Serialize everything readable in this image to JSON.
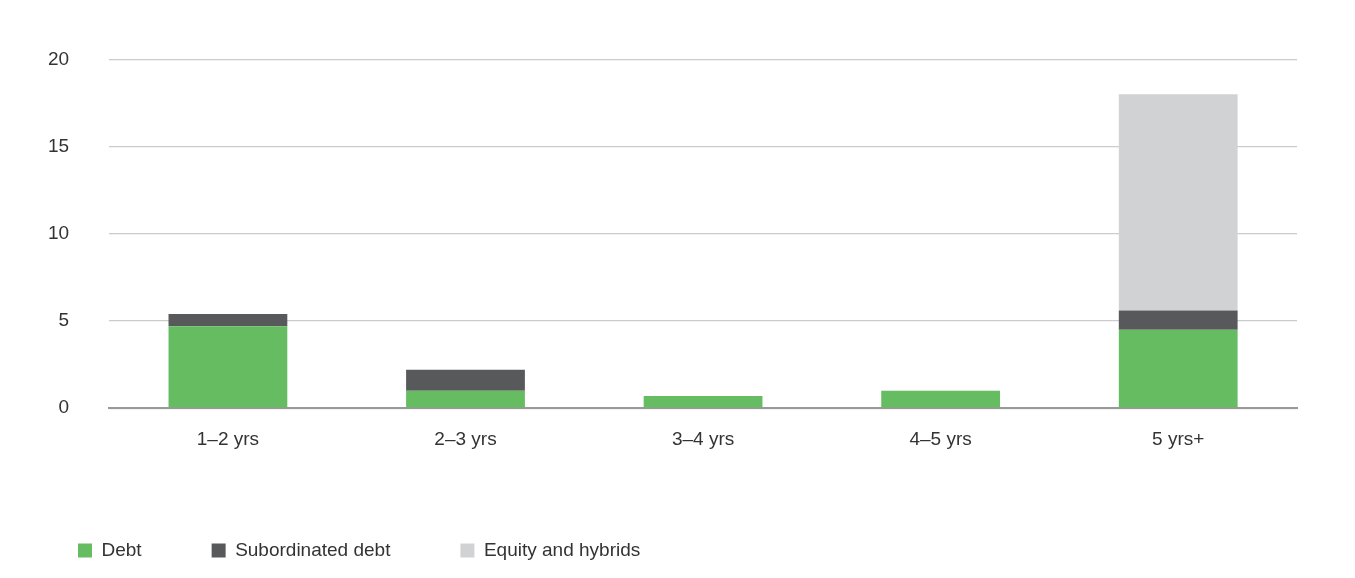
{
  "chart_data": {
    "type": "bar",
    "stacked": true,
    "categories": [
      "1–2 yrs",
      "2–3 yrs",
      "3–4 yrs",
      "4–5 yrs",
      "5 yrs+"
    ],
    "series": [
      {
        "name": "Debt",
        "color": "#66bc61",
        "values": [
          4.7,
          1.0,
          0.7,
          1.0,
          4.5
        ]
      },
      {
        "name": "Subordinated debt",
        "color": "#58595b",
        "values": [
          0.7,
          1.2,
          null,
          null,
          1.1
        ]
      },
      {
        "name": "Equity and hybrids",
        "color": "#d1d2d4",
        "values": [
          null,
          null,
          null,
          null,
          12.4
        ]
      }
    ],
    "ylim": [
      0,
      20
    ],
    "yticks": [
      0,
      5,
      10,
      15,
      20
    ],
    "grid": "y",
    "legend": "bottom left"
  }
}
